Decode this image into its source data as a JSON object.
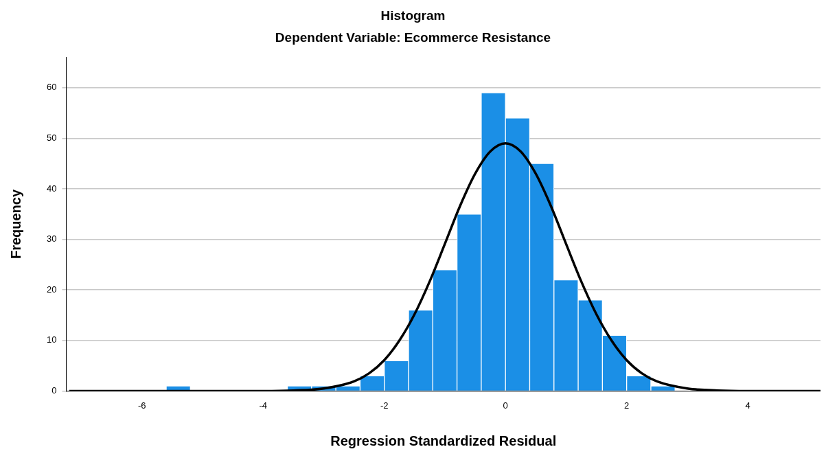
{
  "chart_data": {
    "type": "histogram",
    "title": "Histogram",
    "subtitle": "Dependent Variable: Ecommerce Resistance",
    "xlabel": "Regression Standardized Residual",
    "ylabel": "Frequency",
    "bins": [
      -5.6,
      -5.2,
      -4.8,
      -4.4,
      -4.0,
      -3.6,
      -3.2,
      -2.8,
      -2.4,
      -2.0,
      -1.6,
      -1.2,
      -0.8,
      -0.4,
      0,
      0.4,
      0.8,
      1.2,
      1.6,
      2.0,
      2.4,
      2.8
    ],
    "values": [
      1,
      0,
      0,
      0,
      0,
      1,
      1,
      1,
      3,
      6,
      16,
      24,
      35,
      59,
      54,
      45,
      22,
      18,
      11,
      3,
      1
    ],
    "color": "#1b8fe6",
    "series": [
      {
        "type": "line",
        "color": "#000000",
        "x": [
          -7.2,
          -4,
          -3.5,
          -3,
          -2.5,
          -2.25,
          -2,
          -1.75,
          -1.5,
          -1.25,
          -1,
          -0.75,
          -0.5,
          -0.25,
          0,
          0.25,
          0.5,
          0.75,
          1,
          1.25,
          1.5,
          1.75,
          2,
          2.25,
          2.5,
          3,
          3.5,
          4,
          5.2
        ],
        "values": [
          0,
          0,
          0.1,
          0.5,
          1.9,
          3.5,
          6.1,
          10,
          15.2,
          21.7,
          29.1,
          36.6,
          43,
          47.4,
          49,
          47.4,
          43,
          36.6,
          29.1,
          21.7,
          15.2,
          10,
          6.1,
          3.5,
          1.9,
          0.5,
          0.1,
          0,
          0
        ]
      }
    ],
    "xlim": [
      -7.25,
      5.2
    ],
    "xticks": [
      -6,
      -4,
      -2,
      0,
      2,
      4
    ],
    "ylim": [
      0,
      66
    ],
    "yticks": [
      0,
      10,
      20,
      30,
      40,
      50,
      60
    ],
    "grid": "y",
    "legend": false
  }
}
